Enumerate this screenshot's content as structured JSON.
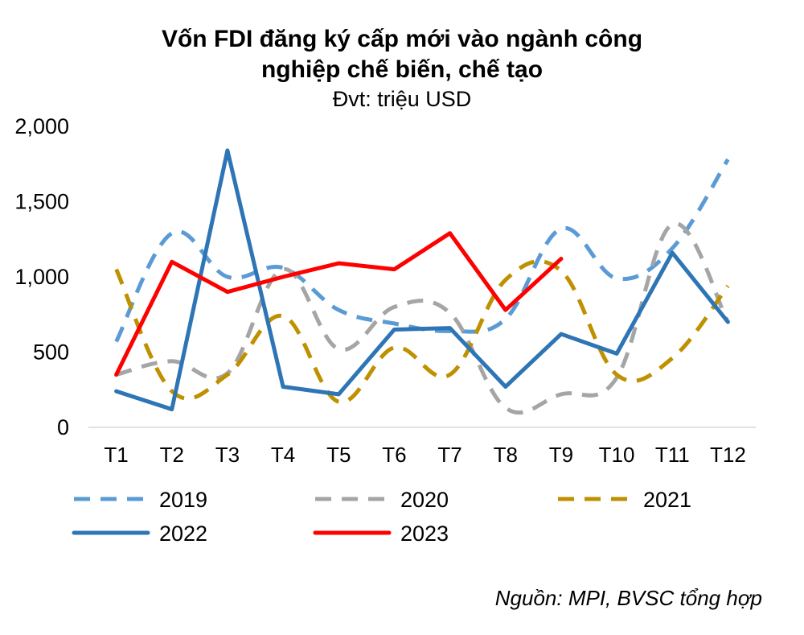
{
  "chart_data": {
    "type": "line",
    "title": "Vốn FDI đăng ký cấp mới vào ngành công nghiệp chế biến, chế tạo",
    "title_lines": [
      "Vốn FDI đăng ký cấp mới vào ngành công",
      "nghiệp chế biến, chế tạo"
    ],
    "subtitle": "Đvt: triệu USD",
    "xlabel": "",
    "ylabel": "",
    "ylim": [
      0,
      2000
    ],
    "yticks": [
      0,
      500,
      1000,
      1500,
      2000
    ],
    "ytick_labels": [
      "0",
      "500",
      "1,000",
      "1,500",
      "2,000"
    ],
    "categories": [
      "T1",
      "T2",
      "T3",
      "T4",
      "T5",
      "T6",
      "T7",
      "T8",
      "T9",
      "T10",
      "T11",
      "T12"
    ],
    "series": [
      {
        "name": "2019",
        "color": "#5B9BD5",
        "dash": "dash",
        "smooth": true,
        "values": [
          570,
          1290,
          1000,
          1060,
          780,
          690,
          640,
          720,
          1320,
          990,
          1190,
          1780
        ]
      },
      {
        "name": "2020",
        "color": "#A5A5A5",
        "dash": "dash",
        "smooth": true,
        "values": [
          350,
          440,
          360,
          1050,
          520,
          800,
          760,
          130,
          220,
          330,
          1350,
          700
        ]
      },
      {
        "name": "2021",
        "color": "#BF9000",
        "dash": "dash",
        "smooth": true,
        "values": [
          1050,
          240,
          350,
          740,
          170,
          530,
          350,
          980,
          1040,
          350,
          460,
          940
        ]
      },
      {
        "name": "2022",
        "color": "#2E75B6",
        "dash": "solid",
        "smooth": false,
        "values": [
          240,
          120,
          1840,
          270,
          220,
          650,
          660,
          270,
          620,
          490,
          1160,
          700
        ]
      },
      {
        "name": "2023",
        "color": "#FF0000",
        "dash": "solid",
        "smooth": false,
        "values": [
          350,
          1100,
          900,
          1000,
          1090,
          1050,
          1290,
          780,
          1120,
          null,
          null,
          null
        ]
      }
    ],
    "legend_position": "bottom"
  },
  "source_note": "Nguồn: MPI, BVSC tổng hợp"
}
